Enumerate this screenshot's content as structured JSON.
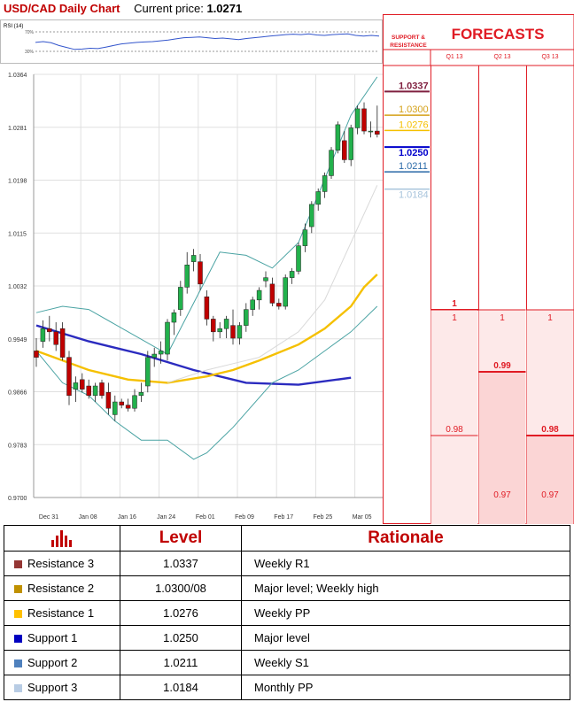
{
  "header": {
    "title": "USD/CAD Daily Chart",
    "price_label": "Current price:",
    "price_value": "1.0271"
  },
  "rsi": {
    "label": "RSI (14)",
    "upper_label": "70%",
    "lower_label": "30%",
    "values": [
      48,
      50,
      47,
      40,
      35,
      30,
      31,
      33,
      32,
      36,
      40,
      44,
      46,
      48,
      49,
      50,
      52,
      54,
      57,
      60,
      61,
      62,
      60,
      58,
      59,
      57,
      55,
      58,
      60,
      62,
      64,
      66,
      68,
      69,
      68,
      70,
      67,
      66,
      68,
      69,
      70,
      66,
      64,
      66,
      64
    ]
  },
  "chart_data": {
    "type": "candlestick",
    "title": "USD/CAD Daily Chart",
    "y_ticks": [
      "1.0364",
      "1.0281",
      "1.0198",
      "1.0115",
      "1.0032",
      "0.9949",
      "0.9866",
      "0.9783",
      "0.9700"
    ],
    "ylim": [
      0.97,
      1.0364
    ],
    "x_ticks": [
      "Dec 31",
      "Jan 08",
      "Jan 16",
      "Jan 24",
      "Feb 01",
      "Feb 09",
      "Feb 17",
      "Feb 25",
      "Mar 05"
    ],
    "candles": [
      [
        0.993,
        0.995,
        0.9905,
        0.992
      ],
      [
        0.9945,
        0.9978,
        0.9935,
        0.9965
      ],
      [
        0.9965,
        0.9985,
        0.9945,
        0.996
      ],
      [
        0.996,
        0.9975,
        0.993,
        0.994
      ],
      [
        0.9965,
        0.9975,
        0.9915,
        0.992
      ],
      [
        0.992,
        0.993,
        0.9845,
        0.986
      ],
      [
        0.987,
        0.989,
        0.985,
        0.988
      ],
      [
        0.9885,
        0.9895,
        0.9865,
        0.987
      ],
      [
        0.9875,
        0.9885,
        0.9855,
        0.986
      ],
      [
        0.986,
        0.988,
        0.985,
        0.9875
      ],
      [
        0.988,
        0.9885,
        0.9855,
        0.986
      ],
      [
        0.9865,
        0.988,
        0.983,
        0.984
      ],
      [
        0.983,
        0.986,
        0.982,
        0.985
      ],
      [
        0.985,
        0.9855,
        0.984,
        0.9845
      ],
      [
        0.9845,
        0.9855,
        0.9835,
        0.984
      ],
      [
        0.984,
        0.987,
        0.9835,
        0.986
      ],
      [
        0.986,
        0.988,
        0.985,
        0.9865
      ],
      [
        0.9875,
        0.993,
        0.9865,
        0.992
      ],
      [
        0.992,
        0.9935,
        0.9905,
        0.9925
      ],
      [
        0.9925,
        0.9945,
        0.991,
        0.993
      ],
      [
        0.9925,
        0.998,
        0.9915,
        0.9975
      ],
      [
        0.9975,
        0.9995,
        0.9955,
        0.999
      ],
      [
        0.9995,
        1.004,
        0.9985,
        1.003
      ],
      [
        1.003,
        1.0085,
        1.002,
        1.0065
      ],
      [
        1.007,
        1.009,
        1.0055,
        1.008
      ],
      [
        1.007,
        1.0082,
        1.0025,
        1.0035
      ],
      [
        1.0015,
        1.0025,
        0.997,
        0.998
      ],
      [
        0.998,
        0.9985,
        0.9945,
        0.996
      ],
      [
        0.996,
        0.9975,
        0.995,
        0.9965
      ],
      [
        0.9965,
        0.9985,
        0.995,
        0.998
      ],
      [
        0.997,
        0.9995,
        0.994,
        0.995
      ],
      [
        0.995,
        0.9975,
        0.994,
        0.997
      ],
      [
        0.997,
        1.0005,
        0.996,
        0.9995
      ],
      [
        0.9995,
        1.0015,
        0.9985,
        1.001
      ],
      [
        1.001,
        1.003,
        0.9995,
        1.0025
      ],
      [
        1.004,
        1.0055,
        1.003,
        1.0045
      ],
      [
        1.0035,
        1.0045,
        1.0,
        1.0005
      ],
      [
        1.0005,
        1.0012,
        0.9995,
        1.0
      ],
      [
        1.0,
        1.005,
        0.9995,
        1.0045
      ],
      [
        1.0045,
        1.006,
        1.0035,
        1.0055
      ],
      [
        1.0055,
        1.01,
        1.005,
        1.0095
      ],
      [
        1.0095,
        1.013,
        1.0085,
        1.012
      ],
      [
        1.0125,
        1.0165,
        1.0115,
        1.016
      ],
      [
        1.016,
        1.0185,
        1.015,
        1.018
      ],
      [
        1.018,
        1.021,
        1.017,
        1.0205
      ],
      [
        1.0205,
        1.025,
        1.02,
        1.0245
      ],
      [
        1.0245,
        1.029,
        1.024,
        1.0285
      ],
      [
        1.026,
        1.0275,
        1.0225,
        1.023
      ],
      [
        1.023,
        1.0285,
        1.022,
        1.028
      ],
      [
        1.028,
        1.0315,
        1.027,
        1.031
      ],
      [
        1.031,
        1.032,
        1.027,
        1.0275
      ],
      [
        1.0275,
        1.029,
        1.0265,
        1.0275
      ],
      [
        1.0275,
        1.0315,
        1.0265,
        1.027
      ]
    ],
    "series": [
      {
        "color": "#2b2bbf",
        "values": [
          [
            0,
            0.997
          ],
          [
            8,
            0.9945
          ],
          [
            16,
            0.9925
          ],
          [
            24,
            0.99
          ],
          [
            32,
            0.988
          ],
          [
            40,
            0.9877
          ],
          [
            48,
            0.9888
          ]
        ]
      },
      {
        "color": "#f5c000",
        "values": [
          [
            0,
            0.993
          ],
          [
            8,
            0.99
          ],
          [
            14,
            0.9885
          ],
          [
            20,
            0.988
          ],
          [
            26,
            0.989
          ],
          [
            30,
            0.99
          ],
          [
            34,
            0.9915
          ],
          [
            40,
            0.994
          ],
          [
            44,
            0.9965
          ],
          [
            48,
            1.0
          ],
          [
            50,
            1.003
          ],
          [
            52,
            1.005
          ]
        ]
      },
      {
        "color": "#4aa3a3",
        "values": [
          [
            0,
            0.999
          ],
          [
            4,
            1.0
          ],
          [
            8,
            0.9995
          ],
          [
            14,
            0.996
          ],
          [
            20,
            0.9925
          ],
          [
            24,
            1.0005
          ],
          [
            28,
            1.0085
          ],
          [
            32,
            1.008
          ],
          [
            36,
            1.006
          ],
          [
            40,
            1.01
          ],
          [
            44,
            1.02
          ],
          [
            48,
            1.03
          ],
          [
            52,
            1.036
          ]
        ]
      },
      {
        "color": "#4aa3a3",
        "values": [
          [
            0,
            0.993
          ],
          [
            4,
            0.988
          ],
          [
            8,
            0.986
          ],
          [
            12,
            0.982
          ],
          [
            16,
            0.979
          ],
          [
            20,
            0.979
          ],
          [
            24,
            0.976
          ],
          [
            26,
            0.977
          ],
          [
            30,
            0.981
          ],
          [
            36,
            0.988
          ],
          [
            40,
            0.99
          ],
          [
            44,
            0.993
          ],
          [
            48,
            0.996
          ],
          [
            52,
            1.0
          ]
        ]
      },
      {
        "color": "#d9d9d9",
        "values": [
          [
            20,
            0.988
          ],
          [
            26,
            0.99
          ],
          [
            30,
            0.991
          ],
          [
            34,
            0.992
          ],
          [
            40,
            0.996
          ],
          [
            44,
            1.001
          ],
          [
            48,
            1.01
          ],
          [
            52,
            1.019
          ]
        ]
      }
    ],
    "levels": [
      {
        "value": "1.0337",
        "color": "#7f1f3f"
      },
      {
        "value": "1.0300",
        "color": "#d4a017"
      },
      {
        "value": "1.0276",
        "color": "#f5c000"
      },
      {
        "value": "1.0250",
        "color": "#0000cc"
      },
      {
        "value": "1.0211",
        "color": "#2b6aa8"
      },
      {
        "value": "1.0184",
        "color": "#a8c4dc"
      }
    ]
  },
  "forecasts": {
    "title": "FORECASTS",
    "sr_label": [
      "SUPPORT &",
      "RESISTANCE"
    ],
    "quarters": [
      "Q1 13",
      "Q2 13",
      "Q3 13"
    ],
    "q1": {
      "value": "1"
    },
    "bands": [
      {
        "top": "1",
        "bottom": "0.98"
      },
      {
        "top": "1",
        "mid": "0.99",
        "bottom": "0.97"
      },
      {
        "top": "1",
        "mid": "0.98",
        "bottom": "0.97"
      }
    ]
  },
  "table": {
    "headers": {
      "level": "Level",
      "rationale": "Rationale"
    },
    "rows": [
      {
        "name": "Resistance 3",
        "level": "1.0337",
        "rationale": "Weekly R1",
        "color": "#943634"
      },
      {
        "name": "Resistance 2",
        "level": "1.0300/08",
        "rationale": "Major level; Weekly high",
        "color": "#c09100"
      },
      {
        "name": "Resistance 1",
        "level": "1.0276",
        "rationale": "Weekly PP",
        "color": "#ffc000"
      },
      {
        "name": "Support 1",
        "level": "1.0250",
        "rationale": "Major level",
        "color": "#0000c0"
      },
      {
        "name": "Support 2",
        "level": "1.0211",
        "rationale": "Weekly S1",
        "color": "#4f81bd"
      },
      {
        "name": "Support 3",
        "level": "1.0184",
        "rationale": "Monthly PP",
        "color": "#b8cce4"
      }
    ]
  }
}
